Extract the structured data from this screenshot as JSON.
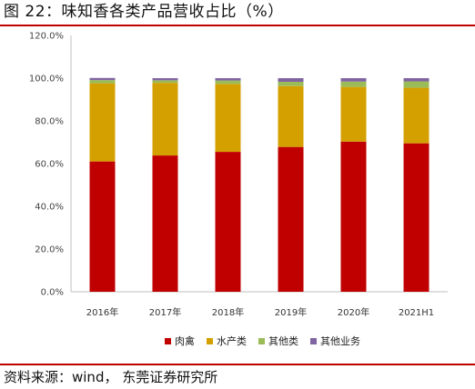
{
  "header": {
    "title": "图 22：味知香各类产品营收占比（%）"
  },
  "footer": {
    "source": "资料来源：wind， 东莞证券研究所"
  },
  "chart_data": {
    "type": "bar",
    "stacked": true,
    "categories": [
      "2016年",
      "2017年",
      "2018年",
      "2019年",
      "2020年",
      "2021H1"
    ],
    "series": [
      {
        "name": "肉禽",
        "color": "#c00000",
        "values": [
          61.0,
          63.8,
          65.5,
          67.8,
          70.3,
          69.5
        ]
      },
      {
        "name": "水产类",
        "color": "#d4a000",
        "values": [
          36.6,
          34.0,
          31.8,
          28.5,
          25.6,
          26.0
        ]
      },
      {
        "name": "其他类",
        "color": "#9bbb59",
        "values": [
          1.5,
          1.2,
          1.6,
          2.0,
          2.5,
          3.0
        ]
      },
      {
        "name": "其他业务",
        "color": "#8064a2",
        "values": [
          1.0,
          1.0,
          1.1,
          1.7,
          1.6,
          1.5
        ]
      }
    ],
    "yTicks": [
      "0.0%",
      "20.0%",
      "40.0%",
      "60.0%",
      "80.0%",
      "100.0%",
      "120.0%"
    ],
    "ylim": [
      0,
      120
    ],
    "legend_position": "bottom",
    "grid": false
  }
}
